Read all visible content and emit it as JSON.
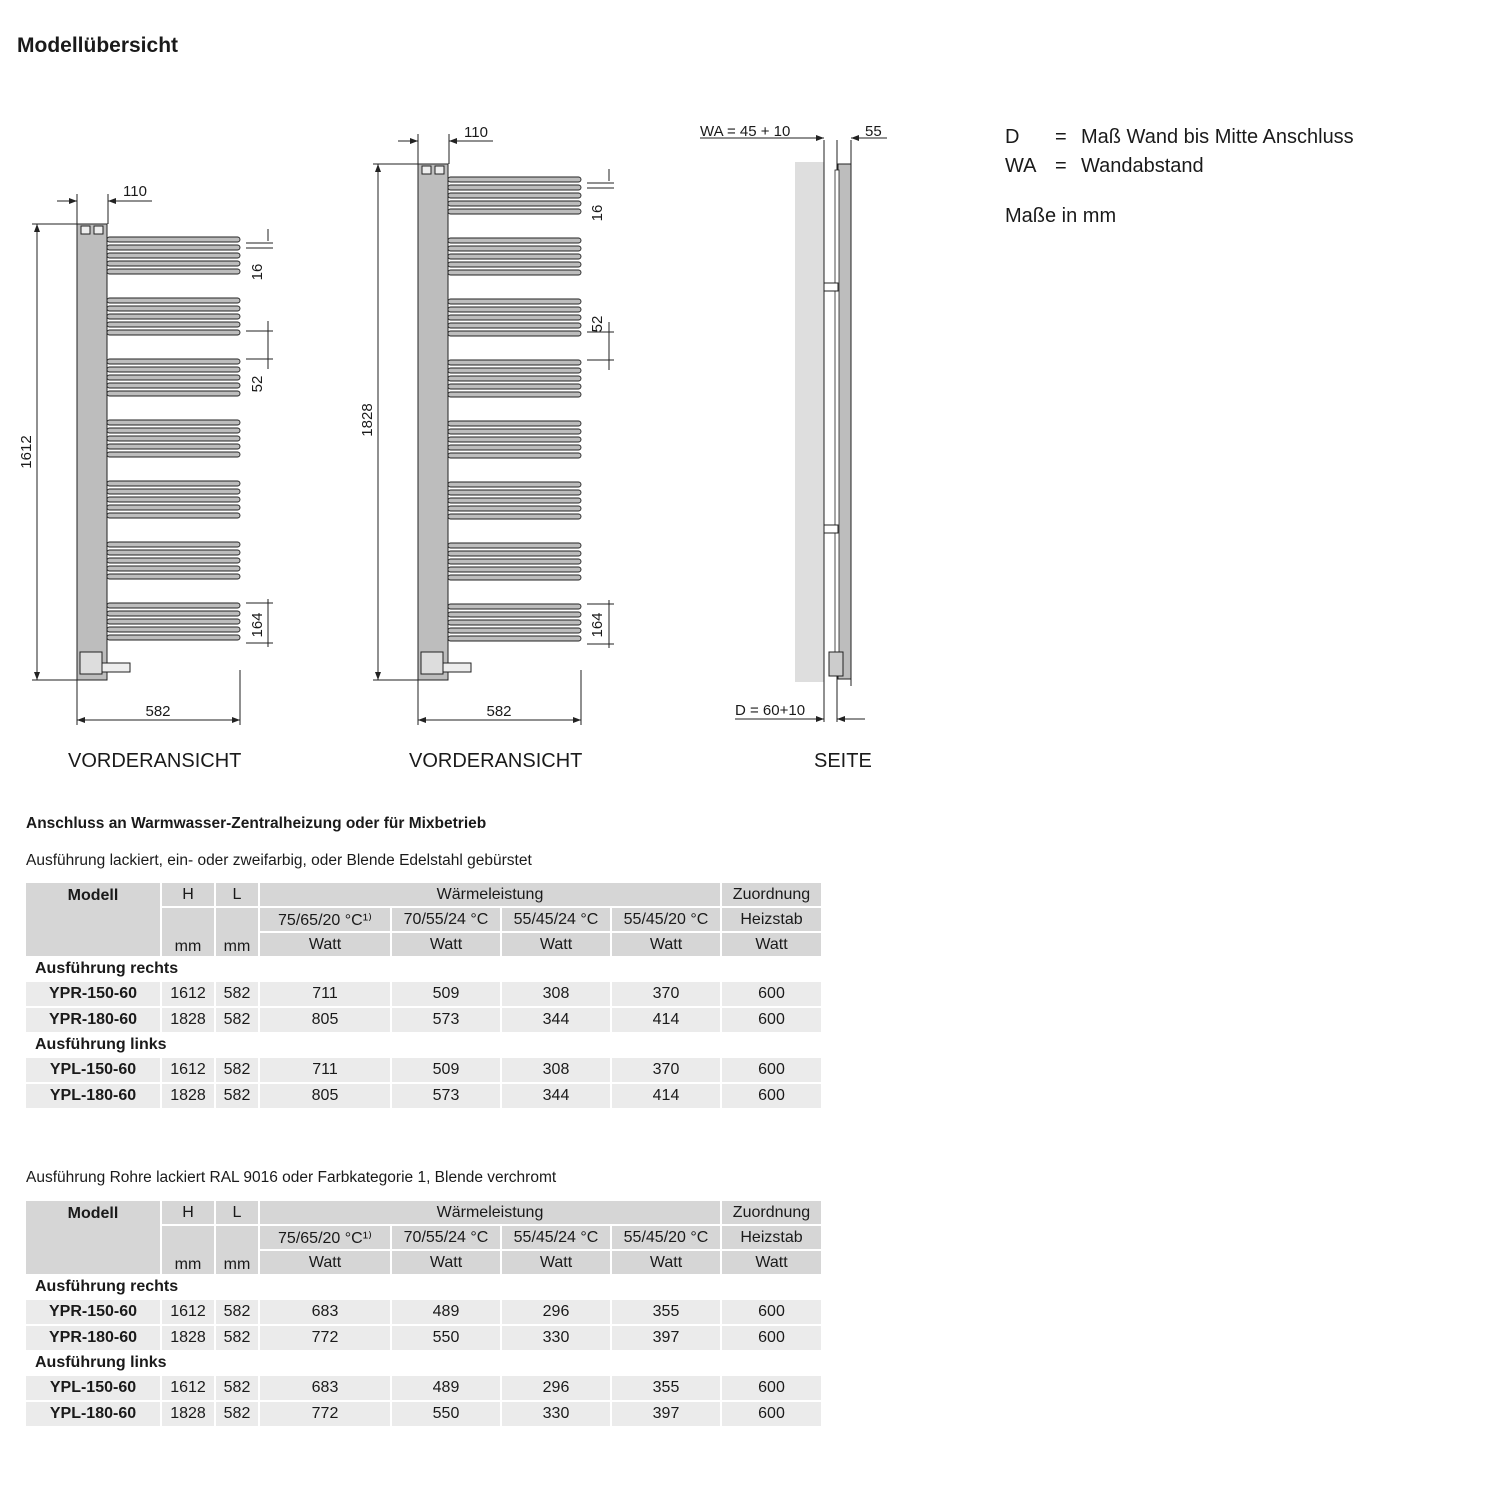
{
  "title": "Modellübersicht",
  "legend": [
    {
      "abbr": "D",
      "eq": "=",
      "text": "Maß Wand bis Mitte Anschluss"
    },
    {
      "abbr": "WA",
      "eq": "=",
      "text": "Wandabstand"
    }
  ],
  "units_note": "Maße in mm",
  "drawings": {
    "view1": {
      "label": "VORDERANSICHT",
      "width_top": "110",
      "height": "1612",
      "tube": "16",
      "gap": "52",
      "bottom_group": "164",
      "length": "582"
    },
    "view2": {
      "label": "VORDERANSICHT",
      "width_top": "110",
      "height": "1828",
      "tube": "16",
      "gap": "52",
      "bottom_group": "164",
      "length": "582"
    },
    "side": {
      "label": "SEITE",
      "wa": "WA = 45 + 10",
      "depth": "55",
      "d": "D = 60+10"
    }
  },
  "sections": [
    {
      "heading": "Anschluss an Warmwasser-Zentralheizung oder für Mixbetrieb",
      "subheading": "Ausführung lackiert, ein- oder zweifarbig, oder Blende Edelstahl gebürstet",
      "header": {
        "modell": "Modell",
        "h": "H",
        "l": "L",
        "mm": "mm",
        "waerme": "Wärmeleistung",
        "c1": "75/65/20 °C¹⁾",
        "c2": "70/55/24 °C",
        "c3": "55/45/24 °C",
        "c4": "55/45/20 °C",
        "watt": "Watt",
        "zu1": "Zuordnung",
        "zu2": "Heizstab"
      },
      "groups": [
        {
          "label": "Ausführung rechts",
          "rows": [
            [
              "YPR-150-60",
              "1612",
              "582",
              "711",
              "509",
              "308",
              "370",
              "600"
            ],
            [
              "YPR-180-60",
              "1828",
              "582",
              "805",
              "573",
              "344",
              "414",
              "600"
            ]
          ]
        },
        {
          "label": "Ausführung links",
          "rows": [
            [
              "YPL-150-60",
              "1612",
              "582",
              "711",
              "509",
              "308",
              "370",
              "600"
            ],
            [
              "YPL-180-60",
              "1828",
              "582",
              "805",
              "573",
              "344",
              "414",
              "600"
            ]
          ]
        }
      ]
    },
    {
      "heading": "",
      "subheading": "Ausführung Rohre lackiert RAL 9016 oder Farbkategorie 1, Blende verchromt",
      "header": {
        "modell": "Modell",
        "h": "H",
        "l": "L",
        "mm": "mm",
        "waerme": "Wärmeleistung",
        "c1": "75/65/20 °C¹⁾",
        "c2": "70/55/24 °C",
        "c3": "55/45/24 °C",
        "c4": "55/45/20 °C",
        "watt": "Watt",
        "zu1": "Zuordnung",
        "zu2": "Heizstab"
      },
      "groups": [
        {
          "label": "Ausführung rechts",
          "rows": [
            [
              "YPR-150-60",
              "1612",
              "582",
              "683",
              "489",
              "296",
              "355",
              "600"
            ],
            [
              "YPR-180-60",
              "1828",
              "582",
              "772",
              "550",
              "330",
              "397",
              "600"
            ]
          ]
        },
        {
          "label": "Ausführung links",
          "rows": [
            [
              "YPL-150-60",
              "1612",
              "582",
              "683",
              "489",
              "296",
              "355",
              "600"
            ],
            [
              "YPL-180-60",
              "1828",
              "582",
              "772",
              "550",
              "330",
              "397",
              "600"
            ]
          ]
        }
      ]
    }
  ]
}
